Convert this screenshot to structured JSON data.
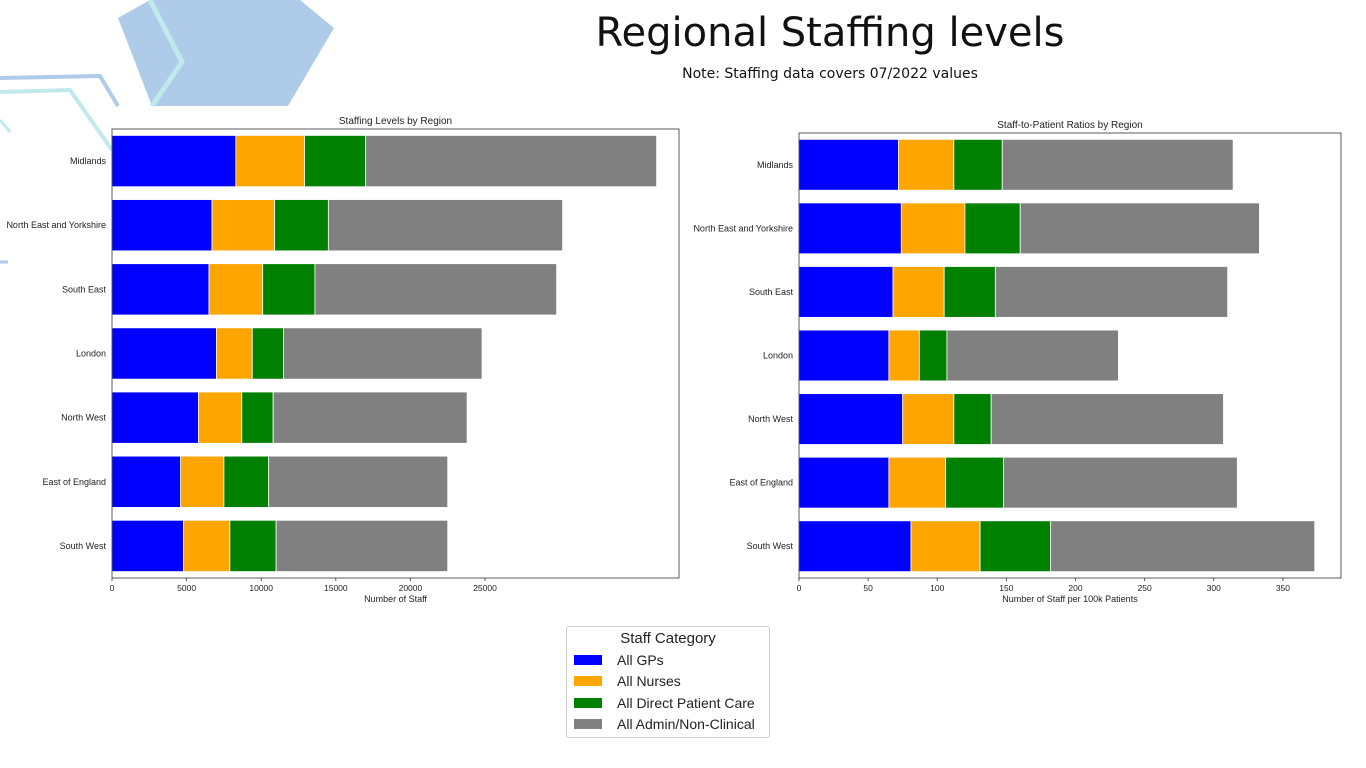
{
  "page": {
    "title": "Regional Staffing levels",
    "note": "Note: Staffing data covers 07/2022 values"
  },
  "colors": {
    "gps": "#0000ff",
    "nurses": "#ffa500",
    "direct_patient_care": "#008000",
    "admin": "#808080",
    "decor_hexagon": "#aecbe9",
    "decor_line": "#bfe9ec"
  },
  "legend": {
    "title": "Staff Category",
    "items": [
      {
        "label": "All GPs",
        "color_key": "gps"
      },
      {
        "label": "All Nurses",
        "color_key": "nurses"
      },
      {
        "label": "All Direct Patient Care",
        "color_key": "direct_patient_care"
      },
      {
        "label": "All Admin/Non-Clinical",
        "color_key": "admin"
      }
    ]
  },
  "chart_data": [
    {
      "type": "bar",
      "orientation": "horizontal",
      "stacked": true,
      "title": "Staffing Levels by Region",
      "xlabel": "Number of Staff",
      "ylabel": "",
      "xlim": [
        0,
        38000
      ],
      "xticks": [
        0,
        5000,
        10000,
        15000,
        20000,
        25000
      ],
      "grid": false,
      "categories": [
        "Midlands",
        "North East and Yorkshire",
        "South East",
        "London",
        "North West",
        "East of England",
        "South West"
      ],
      "series": [
        {
          "name": "All GPs",
          "color_key": "gps",
          "values": [
            8300,
            6700,
            6500,
            7000,
            5800,
            4600,
            4800
          ]
        },
        {
          "name": "All Nurses",
          "color_key": "nurses",
          "values": [
            4600,
            4200,
            3600,
            2400,
            2900,
            2900,
            3100
          ]
        },
        {
          "name": "All Direct Patient Care",
          "color_key": "direct_patient_care",
          "values": [
            4100,
            3600,
            3500,
            2100,
            2100,
            3000,
            3100
          ]
        },
        {
          "name": "All Admin/Non-Clinical",
          "color_key": "admin",
          "values": [
            19500,
            15700,
            16200,
            13300,
            13000,
            12000,
            11500
          ]
        }
      ]
    },
    {
      "type": "bar",
      "orientation": "horizontal",
      "stacked": true,
      "title": "Staff-to-Patient Ratios by Region",
      "xlabel": "Number of Staff per 100k Patients",
      "ylabel": "",
      "xlim": [
        0,
        392
      ],
      "xticks": [
        0,
        50,
        100,
        150,
        200,
        250,
        300,
        350
      ],
      "grid": false,
      "categories": [
        "Midlands",
        "North East and Yorkshire",
        "South East",
        "London",
        "North West",
        "East of England",
        "South West"
      ],
      "series": [
        {
          "name": "All GPs",
          "color_key": "gps",
          "values": [
            72,
            74,
            68,
            65,
            75,
            65,
            81
          ]
        },
        {
          "name": "All Nurses",
          "color_key": "nurses",
          "values": [
            40,
            46,
            37,
            22,
            37,
            41,
            50
          ]
        },
        {
          "name": "All Direct Patient Care",
          "color_key": "direct_patient_care",
          "values": [
            35,
            40,
            37,
            20,
            27,
            42,
            51
          ]
        },
        {
          "name": "All Admin/Non-Clinical",
          "color_key": "admin",
          "values": [
            167,
            173,
            168,
            124,
            168,
            169,
            191
          ]
        }
      ]
    }
  ]
}
